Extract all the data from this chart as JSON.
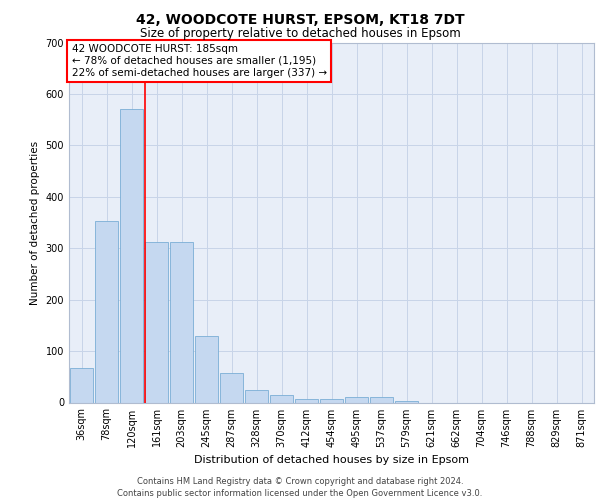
{
  "title1": "42, WOODCOTE HURST, EPSOM, KT18 7DT",
  "title2": "Size of property relative to detached houses in Epsom",
  "xlabel": "Distribution of detached houses by size in Epsom",
  "ylabel": "Number of detached properties",
  "categories": [
    "36sqm",
    "78sqm",
    "120sqm",
    "161sqm",
    "203sqm",
    "245sqm",
    "287sqm",
    "328sqm",
    "370sqm",
    "412sqm",
    "454sqm",
    "495sqm",
    "537sqm",
    "579sqm",
    "621sqm",
    "662sqm",
    "704sqm",
    "746sqm",
    "788sqm",
    "829sqm",
    "871sqm"
  ],
  "values": [
    68,
    352,
    570,
    313,
    313,
    130,
    58,
    25,
    15,
    7,
    7,
    10,
    10,
    3,
    0,
    0,
    0,
    0,
    0,
    0,
    0
  ],
  "bar_color": "#c5d8f0",
  "bar_edge_color": "#7aaed6",
  "grid_color": "#c8d4e8",
  "bg_color": "#e8eef8",
  "annotation_text": "42 WOODCOTE HURST: 185sqm\n← 78% of detached houses are smaller (1,195)\n22% of semi-detached houses are larger (337) →",
  "annotation_box_facecolor": "white",
  "annotation_box_edgecolor": "red",
  "vline_color": "red",
  "vline_x": 2.55,
  "footer": "Contains HM Land Registry data © Crown copyright and database right 2024.\nContains public sector information licensed under the Open Government Licence v3.0.",
  "ylim": [
    0,
    700
  ],
  "yticks": [
    0,
    100,
    200,
    300,
    400,
    500,
    600,
    700
  ],
  "title1_fontsize": 10,
  "title2_fontsize": 8.5,
  "xlabel_fontsize": 8,
  "ylabel_fontsize": 7.5,
  "tick_fontsize": 7,
  "footer_fontsize": 6
}
